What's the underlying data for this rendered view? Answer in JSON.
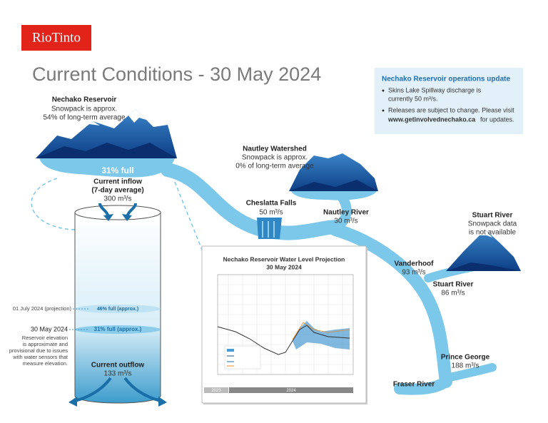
{
  "brand": "RioTinto",
  "title": "Current Conditions - 30 May 2024",
  "info_box": {
    "heading": "Nechako Reservoir operations update",
    "bullet_1": [
      "Skins Lake Spillway discharge is",
      "currently 50 m³/s."
    ],
    "bullet_2": [
      "Releases are subject to change. Please visit"
    ],
    "link": "www.getinvolvednechako.ca",
    "link_tail": "for updates."
  },
  "nechako_reservoir": {
    "name": "Nechako Reservoir",
    "snowpack": [
      "Snowpack is approx.",
      "54% of long-term average"
    ],
    "fill": "31% full",
    "inflow_label": [
      "Current inflow",
      "(7-day average)"
    ],
    "inflow_value": "300 m³/s"
  },
  "nautley_watershed": {
    "name": "Nautley Watershed",
    "snowpack": [
      "Snowpack is approx.",
      "0% of long-term average"
    ]
  },
  "cheslatta_falls": {
    "name": "Cheslatta Falls",
    "flow": "50 m³/s"
  },
  "nautley_river": {
    "name": "Nautley River",
    "flow": "30 m³/s"
  },
  "stuart_watershed": {
    "name": "Stuart River",
    "note": [
      "Snowpack data",
      "is not available"
    ]
  },
  "vanderhoof": {
    "name": "Vanderhoof",
    "flow": "93 m³/s"
  },
  "stuart_river": {
    "name": "Stuart River",
    "flow": "86 m³/s"
  },
  "prince_george": {
    "name": "Prince George",
    "flow": "188 m³/s"
  },
  "fraser_river": {
    "name": "Fraser River"
  },
  "reservoir_gauge": {
    "projection_date": "01 July 2024 (projection)",
    "projection_fill": "46% full (approx.)",
    "current_date": "30 May 2024",
    "current_fill": "31% full (approx.)",
    "note": [
      "Reservoir elevation",
      "is approximate and",
      "provisional due to issues",
      "with water sensors that",
      "measure elevation."
    ],
    "outflow_label": "Current outflow",
    "outflow_value": "133 m³/s"
  },
  "projection_chart": {
    "title": [
      "Nechako Reservoir Water Level Projection",
      "30 May 2024"
    ],
    "years": [
      "2023",
      "2024"
    ]
  }
}
